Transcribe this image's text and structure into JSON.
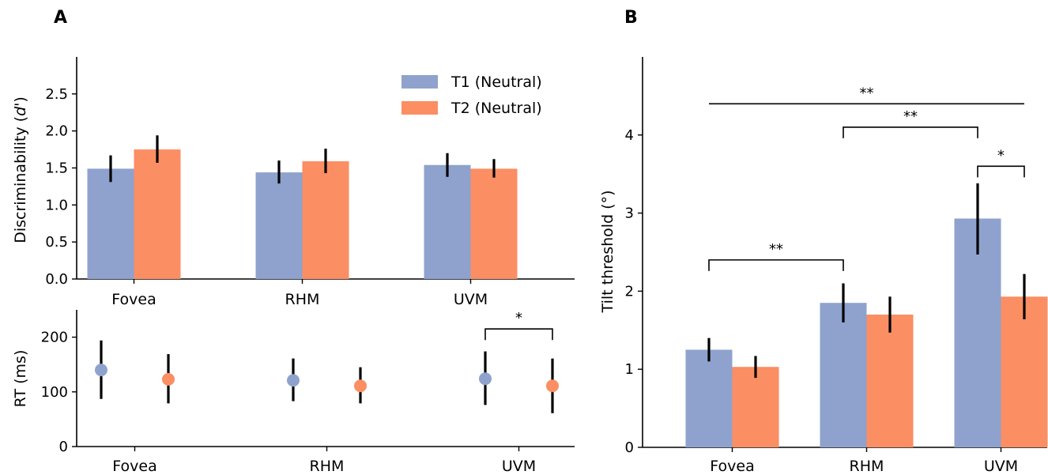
{
  "panels": {
    "a_label": "A",
    "b_label": "B"
  },
  "colors": {
    "t1": "#8ea2cd",
    "t2": "#fb8e63",
    "axis": "#000000"
  },
  "chart_data": [
    {
      "id": "discriminability",
      "type": "bar",
      "panel": "A",
      "categories": [
        "Fovea",
        "RHM",
        "UVM"
      ],
      "ylabel_prefix": "Discriminability (",
      "ylabel_italic": "d'",
      "ylabel_suffix": ")",
      "ylim": [
        0,
        3.0
      ],
      "yticks": [
        "0.0",
        "0.5",
        "1.0",
        "1.5",
        "2.0",
        "2.5"
      ],
      "legend": {
        "position": "top-right"
      },
      "series": [
        {
          "name": "T1 (Neutral)",
          "values": [
            1.49,
            1.44,
            1.54
          ],
          "err_low": [
            1.31,
            1.29,
            1.38
          ],
          "err_high": [
            1.67,
            1.6,
            1.7
          ]
        },
        {
          "name": "T2 (Neutral)",
          "values": [
            1.75,
            1.59,
            1.49
          ],
          "err_low": [
            1.57,
            1.43,
            1.37
          ],
          "err_high": [
            1.94,
            1.76,
            1.62
          ]
        }
      ]
    },
    {
      "id": "reaction_time",
      "type": "scatter",
      "panel": "A",
      "categories": [
        "Fovea",
        "RHM",
        "UVM"
      ],
      "ylabel": "RT (ms)",
      "ylim": [
        0,
        250
      ],
      "yticks": [
        "0",
        "100",
        "200"
      ],
      "series": [
        {
          "name": "T1 (Neutral)",
          "values": [
            140,
            121,
            124
          ],
          "err_low": [
            87,
            83,
            76
          ],
          "err_high": [
            194,
            161,
            174
          ]
        },
        {
          "name": "T2 (Neutral)",
          "values": [
            123,
            111,
            111
          ],
          "err_low": [
            79,
            79,
            61
          ],
          "err_high": [
            169,
            145,
            161
          ]
        }
      ],
      "annotations": [
        {
          "label": "*",
          "from": "UVM T1",
          "to": "UVM T2",
          "y": 215
        }
      ]
    },
    {
      "id": "tilt_threshold",
      "type": "bar",
      "panel": "B",
      "categories": [
        "Fovea",
        "RHM",
        "UVM"
      ],
      "ylabel": "Tilt threshold (°)",
      "ylim": [
        0,
        5.0
      ],
      "yticks": [
        "0",
        "1",
        "2",
        "3",
        "4"
      ],
      "series": [
        {
          "name": "T1 (Neutral)",
          "values": [
            1.25,
            1.85,
            2.93
          ],
          "err_low": [
            1.1,
            1.6,
            2.47
          ],
          "err_high": [
            1.4,
            2.1,
            3.38
          ]
        },
        {
          "name": "T2 (Neutral)",
          "values": [
            1.03,
            1.7,
            1.93
          ],
          "err_low": [
            0.89,
            1.47,
            1.64
          ],
          "err_high": [
            1.17,
            1.93,
            2.22
          ]
        }
      ],
      "annotations": [
        {
          "label": "**",
          "from": "Fovea T1",
          "to": "RHM T1",
          "y": 2.4,
          "bracket": true
        },
        {
          "label": "*",
          "from": "UVM T1",
          "to": "UVM T2",
          "y": 3.6,
          "bracket": true
        },
        {
          "label": "**",
          "from": "RHM T1",
          "to": "UVM T1",
          "y": 4.1,
          "bracket": true
        },
        {
          "label": "**",
          "from": "Fovea T1",
          "to": "UVM T2",
          "y": 4.4,
          "bracket": false
        }
      ]
    }
  ]
}
